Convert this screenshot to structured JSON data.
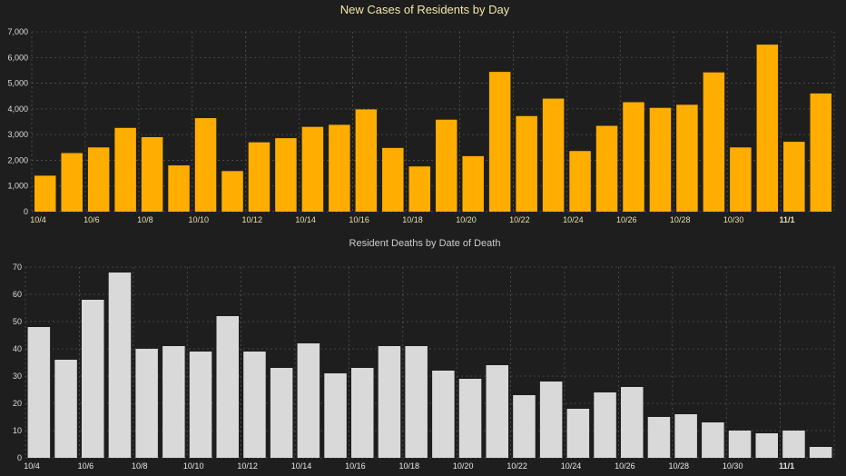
{
  "colors": {
    "background": "#1e1e1e",
    "grid": "#555555",
    "axis_text": "#dddddd",
    "title1": "#f5e7a8",
    "title2": "#cccccc",
    "bar1": "#ffae00",
    "bar2": "#d9d9d9"
  },
  "chart_data": [
    {
      "type": "bar",
      "title": "New Cases of Residents by Day",
      "xlabel": "",
      "ylabel": "",
      "ylim": [
        0,
        7000
      ],
      "yticks": [
        "0",
        "1,000",
        "2,000",
        "3,000",
        "4,000",
        "5,000",
        "6,000",
        "7,000"
      ],
      "categories": [
        "10/4",
        "10/5",
        "10/6",
        "10/7",
        "10/8",
        "10/9",
        "10/10",
        "10/11",
        "10/12",
        "10/13",
        "10/14",
        "10/15",
        "10/16",
        "10/17",
        "10/18",
        "10/19",
        "10/20",
        "10/21",
        "10/22",
        "10/23",
        "10/24",
        "10/25",
        "10/26",
        "10/27",
        "10/28",
        "10/29",
        "10/30",
        "10/31",
        "11/1",
        "11/2"
      ],
      "xtick_labels": [
        "10/4",
        "10/6",
        "10/8",
        "10/10",
        "10/12",
        "10/14",
        "10/16",
        "10/18",
        "10/20",
        "10/22",
        "10/24",
        "10/26",
        "10/28",
        "10/30",
        "11/1"
      ],
      "values": [
        1400,
        2280,
        2500,
        3260,
        2900,
        1800,
        3640,
        1580,
        2700,
        2860,
        3300,
        3380,
        3980,
        2480,
        1760,
        3580,
        2160,
        5440,
        3720,
        4400,
        2360,
        3340,
        4260,
        4040,
        4160,
        5420,
        2500,
        6500,
        2720,
        4600
      ],
      "grid": true
    },
    {
      "type": "bar",
      "title": "Resident Deaths by Date of Death",
      "xlabel": "",
      "ylabel": "",
      "ylim": [
        0,
        70
      ],
      "yticks": [
        "0",
        "10",
        "20",
        "30",
        "40",
        "50",
        "60",
        "70"
      ],
      "categories": [
        "10/4",
        "10/5",
        "10/6",
        "10/7",
        "10/8",
        "10/9",
        "10/10",
        "10/11",
        "10/12",
        "10/13",
        "10/14",
        "10/15",
        "10/16",
        "10/17",
        "10/18",
        "10/19",
        "10/20",
        "10/21",
        "10/22",
        "10/23",
        "10/24",
        "10/25",
        "10/26",
        "10/27",
        "10/28",
        "10/29",
        "10/30",
        "10/31",
        "11/1",
        "11/2"
      ],
      "xtick_labels": [
        "10/4",
        "10/6",
        "10/8",
        "10/10",
        "10/12",
        "10/14",
        "10/16",
        "10/18",
        "10/20",
        "10/22",
        "10/24",
        "10/26",
        "10/28",
        "10/30",
        "11/1"
      ],
      "values": [
        48,
        36,
        58,
        68,
        40,
        41,
        39,
        52,
        39,
        33,
        42,
        31,
        33,
        41,
        41,
        32,
        29,
        34,
        23,
        28,
        18,
        24,
        26,
        15,
        16,
        13,
        10,
        9,
        10,
        4
      ],
      "grid": true
    }
  ]
}
